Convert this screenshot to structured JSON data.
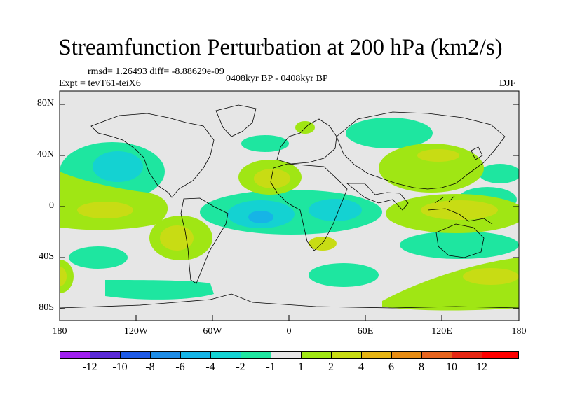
{
  "title": "Streamfunction Perturbation at 200 hPa (km2/s)",
  "stats": "rmsd= 1.26493 diff= -8.88629e-09",
  "experiment": "Expt = tevT61-teiX6",
  "period": "0408kyr BP - 0408kyr BP",
  "season": "DJF",
  "lat_labels": [
    "80N",
    "40N",
    "0",
    "40S",
    "80S"
  ],
  "lon_labels": [
    "180",
    "120W",
    "60W",
    "0",
    "60E",
    "120E",
    "180"
  ],
  "colorbar": {
    "labels": [
      "-12",
      "-10",
      "-8",
      "-6",
      "-4",
      "-2",
      "-1",
      "1",
      "2",
      "4",
      "6",
      "8",
      "10",
      "12"
    ],
    "colors": [
      "#a020f0",
      "#5a2ad8",
      "#1e5ae6",
      "#1e8ce6",
      "#16b4e6",
      "#14d2d2",
      "#1ee6a0",
      "#e6e6e6",
      "#a0e614",
      "#c8dc14",
      "#e6b414",
      "#e68c14",
      "#e6641e",
      "#e62814",
      "#ff0000"
    ]
  },
  "map_colors": {
    "ocean_bg": "#e6e6e6",
    "pos_light": "#a0e614",
    "pos_mid": "#c8dc14",
    "neg_light": "#1ee6a0",
    "neg_mid": "#14d2d2",
    "neg_deep": "#16b4e6"
  }
}
